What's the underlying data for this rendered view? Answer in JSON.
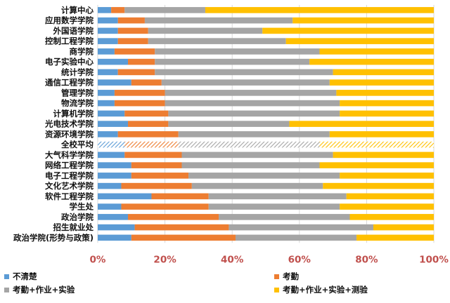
{
  "chart_data": {
    "type": "bar",
    "orientation": "horizontal",
    "stacked": "percent",
    "categories": [
      "计算中心",
      "应用数学学院",
      "外国语学院",
      "控制工程学院",
      "商学院",
      "电子实验中心",
      "统计学院",
      "通信工程学院",
      "管理学院",
      "物流学院",
      "计算机学院",
      "光电技术学院",
      "资源环境学院",
      "全校平均",
      "大气科学学院",
      "网络工程学院",
      "电子工程学院",
      "文化艺术学院",
      "软件工程学院",
      "学生处",
      "政治学院",
      "招生就业处",
      "政治学院(形势与政策)"
    ],
    "highlight_category": "全校平均",
    "series": [
      {
        "name": "不清楚",
        "color": "#5b9bd5",
        "values": [
          4,
          6,
          6,
          6,
          5,
          9,
          6,
          10,
          5,
          5,
          8,
          9,
          6,
          8,
          8,
          10,
          10,
          7,
          16,
          7,
          9,
          11,
          10
        ]
      },
      {
        "name": "考勤",
        "color": "#ed7d31",
        "values": [
          4,
          8,
          9,
          9,
          12,
          8,
          11,
          9,
          15,
          15,
          13,
          12,
          18,
          16,
          17,
          15,
          17,
          21,
          17,
          26,
          27,
          28,
          31
        ]
      },
      {
        "name": "考勤+作业+实验",
        "color": "#a5a5a5",
        "values": [
          24,
          44,
          34,
          41,
          49,
          46,
          53,
          50,
          51,
          52,
          51,
          36,
          45,
          42,
          45,
          41,
          45,
          39,
          41,
          39,
          39,
          43,
          36
        ]
      },
      {
        "name": "考勤+作业+实验+测验",
        "color": "#ffc000",
        "values": [
          68,
          42,
          51,
          44,
          34,
          37,
          30,
          31,
          29,
          28,
          28,
          43,
          31,
          34,
          30,
          34,
          28,
          33,
          26,
          28,
          25,
          18,
          23
        ]
      }
    ],
    "x_ticks": [
      "0%",
      "20%",
      "40%",
      "60%",
      "80%",
      "100%"
    ],
    "xlim": [
      0,
      100
    ],
    "grid": true,
    "legend": {
      "placement": "bottom",
      "columns": 2
    }
  }
}
